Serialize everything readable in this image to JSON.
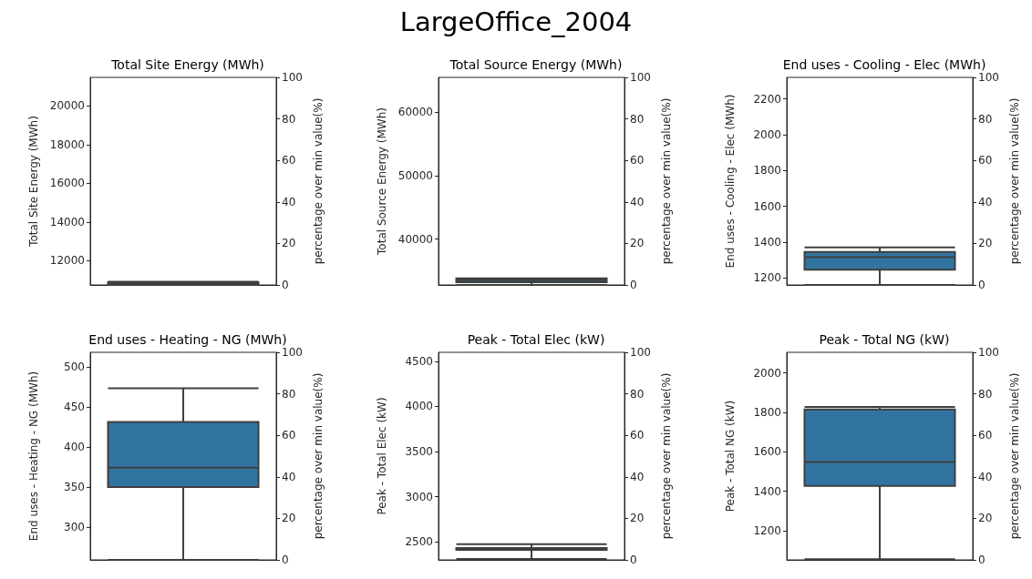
{
  "chart_data": [
    {
      "type": "other",
      "title": "LargeOffice_2004"
    },
    {
      "type": "box",
      "title": "Total Site Energy (MWh)",
      "ylabel": "Total Site Energy (MWh)",
      "y2label": "percentage over min value(%)",
      "categories": [
        null
      ],
      "color": "#3274a1",
      "boxes": [
        {
          "low": 10740,
          "q1": 10780,
          "median": 10830,
          "q3": 10880,
          "high": 10900
        }
      ],
      "ylim": [
        10740,
        21480
      ],
      "yticks": [
        12000,
        14000,
        16000,
        18000,
        20000
      ],
      "y2lim": [
        0,
        100
      ],
      "y2ticks": [
        0,
        20,
        40,
        60,
        80,
        100
      ],
      "grid": false
    },
    {
      "type": "box",
      "title": "Total Source Energy (MWh)",
      "ylabel": "Total Source Energy (MWh)",
      "y2label": "percentage over min value(%)",
      "categories": [
        null
      ],
      "color": "#3274a1",
      "boxes": [
        {
          "low": 32760,
          "q1": 33200,
          "median": 33500,
          "q3": 33800,
          "high": 33800
        }
      ],
      "ylim": [
        32760,
        65520
      ],
      "yticks": [
        40000,
        50000,
        60000
      ],
      "y2lim": [
        0,
        100
      ],
      "y2ticks": [
        0,
        20,
        40,
        60,
        80,
        100
      ],
      "grid": false
    },
    {
      "type": "box",
      "title": "End uses - Cooling - Elec (MWh)",
      "ylabel": "End uses - Cooling - Elec (MWh)",
      "y2label": "percentage over min value(%)",
      "categories": [
        null
      ],
      "color": "#3274a1",
      "boxes": [
        {
          "low": 1160,
          "q1": 1245,
          "median": 1315,
          "q3": 1345,
          "high": 1370
        }
      ],
      "ylim": [
        1160,
        2320
      ],
      "yticks": [
        1200,
        1400,
        1600,
        1800,
        2000,
        2200
      ],
      "y2lim": [
        0,
        100
      ],
      "y2ticks": [
        0,
        20,
        40,
        60,
        80,
        100
      ],
      "grid": false
    },
    {
      "type": "box",
      "title": "End uses - Heating - NG (MWh)",
      "ylabel": "End uses - Heating - NG (MWh)",
      "y2label": "percentage over min value(%)",
      "categories": [
        null
      ],
      "color": "#3274a1",
      "boxes": [
        {
          "low": 259,
          "q1": 350,
          "median": 374,
          "q3": 431,
          "high": 473
        }
      ],
      "ylim": [
        259,
        518
      ],
      "yticks": [
        300,
        350,
        400,
        450,
        500
      ],
      "y2lim": [
        0,
        100
      ],
      "y2ticks": [
        0,
        20,
        40,
        60,
        80,
        100
      ],
      "grid": false
    },
    {
      "type": "box",
      "title": "Peak - Total Elec (kW)",
      "ylabel": "Peak - Total Elec (kW)",
      "y2label": "percentage over min value(%)",
      "categories": [
        null
      ],
      "color": "#3274a1",
      "boxes": [
        {
          "low": 2310,
          "q1": 2410,
          "median": 2420,
          "q3": 2430,
          "high": 2475
        }
      ],
      "ylim": [
        2300,
        4600
      ],
      "yticks": [
        2500,
        3000,
        3500,
        4000,
        4500
      ],
      "y2lim": [
        0,
        100
      ],
      "y2ticks": [
        0,
        20,
        40,
        60,
        80,
        100
      ],
      "grid": false
    },
    {
      "type": "box",
      "title": "Peak - Total NG (kW)",
      "ylabel": "Peak - Total NG (kW)",
      "y2label": "percentage over min value(%)",
      "categories": [
        null
      ],
      "color": "#3274a1",
      "boxes": [
        {
          "low": 1055,
          "q1": 1427,
          "median": 1548,
          "q3": 1815,
          "high": 1827
        }
      ],
      "ylim": [
        1052,
        2104
      ],
      "yticks": [
        1200,
        1400,
        1600,
        1800,
        2000
      ],
      "y2lim": [
        0,
        100
      ],
      "y2ticks": [
        0,
        20,
        40,
        60,
        80,
        100
      ],
      "grid": false
    }
  ]
}
